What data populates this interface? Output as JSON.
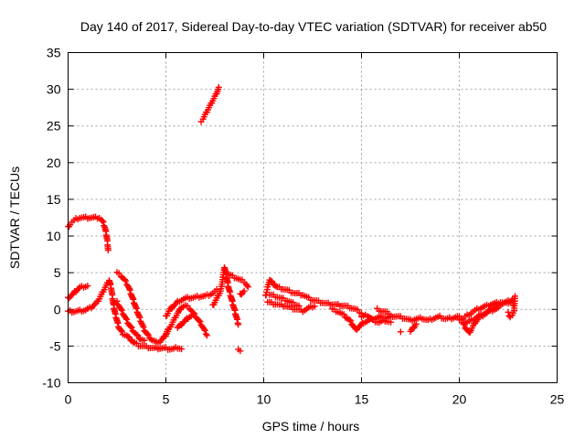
{
  "chart_data": {
    "type": "scatter",
    "title": "Day 140 of 2017, Sidereal Day-to-day VTEC variation (SDTVAR) for receiver ab50",
    "xlabel": "GPS time / hours",
    "ylabel": "SDTVAR / TECUs",
    "xlim": [
      0,
      25
    ],
    "ylim": [
      -10,
      35
    ],
    "xticks": [
      0,
      5,
      10,
      15,
      20,
      25
    ],
    "yticks": [
      -10,
      -5,
      0,
      5,
      10,
      15,
      20,
      25,
      30,
      35
    ],
    "grid": true,
    "marker": "+",
    "series": [
      {
        "name": "SDTVAR",
        "color": "#ff0000",
        "points": [
          [
            0.0,
            11.2
          ],
          [
            0.1,
            11.6
          ],
          [
            0.2,
            11.9
          ],
          [
            0.3,
            12.1
          ],
          [
            0.4,
            12.3
          ],
          [
            0.5,
            12.4
          ],
          [
            0.6,
            12.5
          ],
          [
            0.8,
            12.5
          ],
          [
            1.0,
            12.5
          ],
          [
            1.2,
            12.5
          ],
          [
            1.4,
            12.5
          ],
          [
            1.6,
            12.5
          ],
          [
            1.7,
            12.2
          ],
          [
            1.8,
            11.8
          ],
          [
            1.9,
            11.0
          ],
          [
            2.0,
            9.5
          ],
          [
            2.05,
            8.0
          ],
          [
            0.0,
            1.5
          ],
          [
            0.2,
            2.0
          ],
          [
            0.4,
            2.5
          ],
          [
            0.6,
            3.0
          ],
          [
            0.8,
            3.1
          ],
          [
            1.0,
            3.2
          ],
          [
            0.0,
            -0.3
          ],
          [
            0.3,
            -0.3
          ],
          [
            0.6,
            -0.2
          ],
          [
            0.9,
            -0.1
          ],
          [
            1.2,
            0.3
          ],
          [
            1.5,
            1.0
          ],
          [
            1.7,
            2.0
          ],
          [
            1.9,
            3.0
          ],
          [
            2.1,
            4.0
          ],
          [
            2.2,
            3.0
          ],
          [
            2.3,
            1.0
          ],
          [
            2.4,
            -0.5
          ],
          [
            2.5,
            -1.5
          ],
          [
            2.6,
            -2.5
          ],
          [
            2.8,
            -3.3
          ],
          [
            3.0,
            -3.6
          ],
          [
            3.2,
            -4.1
          ],
          [
            3.4,
            -4.6
          ],
          [
            3.6,
            -4.9
          ],
          [
            3.8,
            -5.0
          ],
          [
            4.0,
            -5.1
          ],
          [
            4.2,
            -5.2
          ],
          [
            4.4,
            -5.3
          ],
          [
            4.6,
            -5.3
          ],
          [
            4.8,
            -5.3
          ],
          [
            5.0,
            -5.3
          ],
          [
            5.2,
            -5.4
          ],
          [
            5.4,
            -5.4
          ],
          [
            5.6,
            -5.2
          ],
          [
            5.8,
            -5.4
          ],
          [
            2.5,
            5.0
          ],
          [
            2.7,
            4.6
          ],
          [
            2.9,
            4.0
          ],
          [
            3.1,
            3.0
          ],
          [
            3.3,
            1.5
          ],
          [
            3.5,
            0.0
          ],
          [
            3.7,
            -1.5
          ],
          [
            3.9,
            -2.8
          ],
          [
            4.1,
            -3.6
          ],
          [
            4.3,
            -4.2
          ],
          [
            4.5,
            -4.5
          ],
          [
            4.7,
            -4.4
          ],
          [
            4.9,
            -3.8
          ],
          [
            5.1,
            -2.8
          ],
          [
            2.5,
            1.0
          ],
          [
            2.7,
            0.0
          ],
          [
            2.9,
            -1.0
          ],
          [
            3.1,
            -2.0
          ],
          [
            3.3,
            -2.8
          ],
          [
            3.5,
            -3.5
          ],
          [
            3.7,
            -4.0
          ],
          [
            3.9,
            -4.3
          ],
          [
            5.0,
            -1.0
          ],
          [
            5.2,
            0.0
          ],
          [
            5.4,
            0.5
          ],
          [
            5.6,
            1.0
          ],
          [
            5.8,
            1.3
          ],
          [
            6.0,
            1.5
          ],
          [
            6.2,
            1.6
          ],
          [
            6.4,
            1.6
          ],
          [
            6.6,
            1.7
          ],
          [
            6.8,
            1.8
          ],
          [
            7.0,
            1.8
          ],
          [
            7.2,
            2.0
          ],
          [
            7.4,
            2.2
          ],
          [
            7.6,
            2.6
          ],
          [
            5.0,
            -3.5
          ],
          [
            5.2,
            -2.5
          ],
          [
            5.4,
            -1.5
          ],
          [
            5.6,
            -0.5
          ],
          [
            5.8,
            0.3
          ],
          [
            6.0,
            0.5
          ],
          [
            6.2,
            0.2
          ],
          [
            6.4,
            -0.5
          ],
          [
            6.6,
            -1.2
          ],
          [
            6.8,
            -2.0
          ],
          [
            7.0,
            -3.0
          ],
          [
            7.1,
            -3.5
          ],
          [
            5.6,
            -2.5
          ],
          [
            5.8,
            -2.0
          ],
          [
            6.0,
            -1.5
          ],
          [
            6.2,
            -1.0
          ],
          [
            6.4,
            -0.8
          ],
          [
            7.4,
            0.5
          ],
          [
            7.6,
            1.5
          ],
          [
            7.8,
            2.5
          ],
          [
            7.9,
            4.0
          ],
          [
            8.0,
            5.8
          ],
          [
            8.1,
            4.5
          ],
          [
            8.2,
            3.0
          ],
          [
            8.3,
            2.0
          ],
          [
            8.4,
            1.0
          ],
          [
            8.5,
            0.0
          ],
          [
            8.6,
            -1.0
          ],
          [
            8.7,
            -2.0
          ],
          [
            8.2,
            4.8
          ],
          [
            8.4,
            4.5
          ],
          [
            8.6,
            4.3
          ],
          [
            8.8,
            4.0
          ],
          [
            9.0,
            3.8
          ],
          [
            9.1,
            3.5
          ],
          [
            9.2,
            3.0
          ],
          [
            8.8,
            2.0
          ],
          [
            9.0,
            2.5
          ],
          [
            8.7,
            -5.5
          ],
          [
            8.8,
            -5.8
          ],
          [
            6.8,
            25.7
          ],
          [
            6.9,
            26.0
          ],
          [
            7.0,
            26.5
          ],
          [
            7.1,
            27.0
          ],
          [
            7.2,
            27.5
          ],
          [
            7.3,
            28.0
          ],
          [
            7.4,
            28.5
          ],
          [
            7.5,
            29.0
          ],
          [
            7.6,
            29.5
          ],
          [
            7.7,
            30.2
          ],
          [
            10.1,
            1.8
          ],
          [
            10.2,
            3.0
          ],
          [
            10.3,
            4.0
          ],
          [
            10.5,
            3.5
          ],
          [
            10.7,
            3.0
          ],
          [
            11.0,
            2.8
          ],
          [
            11.3,
            2.5
          ],
          [
            11.6,
            2.2
          ],
          [
            12.0,
            2.0
          ],
          [
            12.3,
            1.5
          ],
          [
            12.6,
            1.2
          ],
          [
            12.9,
            1.0
          ],
          [
            13.2,
            0.8
          ],
          [
            13.5,
            0.7
          ],
          [
            13.8,
            0.6
          ],
          [
            14.1,
            0.5
          ],
          [
            14.4,
            0.3
          ],
          [
            14.7,
            0.0
          ],
          [
            15.0,
            -0.5
          ],
          [
            10.2,
            1.0
          ],
          [
            10.5,
            0.8
          ],
          [
            10.8,
            0.6
          ],
          [
            11.1,
            0.5
          ],
          [
            11.4,
            0.2
          ],
          [
            11.7,
            0.0
          ],
          [
            12.0,
            -0.2
          ],
          [
            12.3,
            0.2
          ],
          [
            12.6,
            0.5
          ],
          [
            10.3,
            2.0
          ],
          [
            10.6,
            1.8
          ],
          [
            10.9,
            1.5
          ],
          [
            11.2,
            1.2
          ],
          [
            11.5,
            0.8
          ],
          [
            11.8,
            0.5
          ],
          [
            13.5,
            0.0
          ],
          [
            13.8,
            -0.3
          ],
          [
            14.1,
            -0.8
          ],
          [
            14.4,
            -1.5
          ],
          [
            14.6,
            -2.3
          ],
          [
            14.7,
            -2.8
          ],
          [
            14.9,
            -2.3
          ],
          [
            15.1,
            -1.8
          ],
          [
            15.4,
            -1.5
          ],
          [
            15.7,
            -1.2
          ],
          [
            16.0,
            -1.0
          ],
          [
            16.3,
            -1.2
          ],
          [
            16.6,
            -0.9
          ],
          [
            16.9,
            -1.0
          ],
          [
            17.2,
            -1.2
          ],
          [
            17.5,
            -1.5
          ],
          [
            17.8,
            -1.3
          ],
          [
            18.1,
            -1.2
          ],
          [
            18.4,
            -1.5
          ],
          [
            18.7,
            -1.2
          ],
          [
            19.0,
            -1.0
          ],
          [
            19.3,
            -1.3
          ],
          [
            19.6,
            -1.2
          ],
          [
            19.9,
            -1.0
          ],
          [
            20.2,
            -1.2
          ],
          [
            15.0,
            -1.0
          ],
          [
            15.3,
            -0.8
          ],
          [
            15.6,
            -1.5
          ],
          [
            15.9,
            -1.8
          ],
          [
            16.2,
            -1.5
          ],
          [
            16.5,
            -1.8
          ],
          [
            15.8,
            0.0
          ],
          [
            16.1,
            -0.3
          ],
          [
            16.4,
            -0.5
          ],
          [
            17.0,
            -3.0
          ],
          [
            17.5,
            -3.0
          ],
          [
            17.8,
            -2.0
          ],
          [
            20.2,
            -2.0
          ],
          [
            20.4,
            -2.8
          ],
          [
            20.5,
            -3.2
          ],
          [
            20.6,
            -2.8
          ],
          [
            20.8,
            -1.8
          ],
          [
            21.0,
            -1.2
          ],
          [
            21.2,
            -0.8
          ],
          [
            21.4,
            -0.5
          ],
          [
            21.6,
            0.0
          ],
          [
            21.8,
            0.3
          ],
          [
            22.0,
            0.5
          ],
          [
            22.2,
            0.8
          ],
          [
            22.4,
            1.0
          ],
          [
            22.6,
            1.2
          ],
          [
            22.8,
            1.5
          ],
          [
            20.3,
            -1.0
          ],
          [
            20.6,
            -0.5
          ],
          [
            20.9,
            0.0
          ],
          [
            21.2,
            0.3
          ],
          [
            21.5,
            0.6
          ],
          [
            21.8,
            0.8
          ],
          [
            22.1,
            1.0
          ],
          [
            22.4,
            0.8
          ],
          [
            22.7,
            1.2
          ],
          [
            20.0,
            -1.5
          ],
          [
            20.4,
            -1.8
          ],
          [
            20.8,
            -1.2
          ],
          [
            21.2,
            -0.6
          ],
          [
            21.6,
            -0.2
          ],
          [
            22.0,
            0.2
          ],
          [
            22.5,
            -0.5
          ],
          [
            22.6,
            -1.0
          ],
          [
            22.7,
            -0.8
          ],
          [
            22.8,
            -0.3
          ],
          [
            22.85,
            1.8
          ],
          [
            22.75,
            0.5
          ]
        ]
      }
    ]
  }
}
